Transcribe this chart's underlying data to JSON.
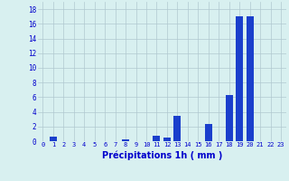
{
  "hours": [
    0,
    1,
    2,
    3,
    4,
    5,
    6,
    7,
    8,
    9,
    10,
    11,
    12,
    13,
    14,
    15,
    16,
    17,
    18,
    19,
    20,
    21,
    22,
    23
  ],
  "values": [
    0,
    0.6,
    0,
    0,
    0,
    0,
    0,
    0,
    0.2,
    0,
    0,
    0.8,
    0.5,
    3.5,
    0,
    0,
    2.3,
    0,
    6.3,
    17.0,
    17.0,
    0,
    0,
    0
  ],
  "bar_color": "#1a3fcc",
  "background_color": "#d8f0f0",
  "grid_color": "#b0c8d0",
  "xlabel": "Précipitations 1h ( mm )",
  "xlabel_color": "#0000cc",
  "tick_color": "#0000cc",
  "ylim": [
    0,
    19
  ],
  "yticks": [
    0,
    2,
    4,
    6,
    8,
    10,
    12,
    14,
    16,
    18
  ]
}
